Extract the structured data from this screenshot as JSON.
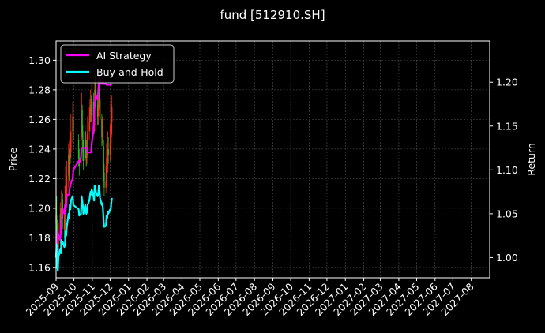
{
  "chart_data": {
    "type": "line",
    "title": "fund [512910.SH]",
    "ylabel": "Price",
    "y2label": "Return",
    "ylim": [
      1.153,
      1.313
    ],
    "y2lim": [
      0.977,
      1.247
    ],
    "yticks": [
      "1.16",
      "1.18",
      "1.20",
      "1.22",
      "1.24",
      "1.26",
      "1.28",
      "1.30"
    ],
    "y2ticks": [
      "1.00",
      "1.05",
      "1.10",
      "1.15",
      "1.20"
    ],
    "xticks": [
      "2025-09",
      "2025-10",
      "2025-11",
      "2025-12",
      "2026-01",
      "2026-02",
      "2026-03",
      "2026-04",
      "2026-05",
      "2026-06",
      "2026-07",
      "2026-08",
      "2026-09",
      "2026-10",
      "2026-11",
      "2026-12",
      "2027-01",
      "2027-02",
      "2027-03",
      "2027-04",
      "2027-05",
      "2027-06",
      "2027-07",
      "2027-08"
    ],
    "xlim": [
      "2025-09-01",
      "2027-09-01"
    ],
    "grid": true,
    "legend": {
      "placement": "top-left",
      "entries": [
        "AI Strategy",
        "Buy-and-Hold"
      ]
    },
    "series": [
      {
        "name": "AI Strategy",
        "axis": "right",
        "color": "#ff00ff",
        "points": [
          [
            "2025-09-01",
            1.0
          ],
          [
            "2025-09-02",
            1.01
          ],
          [
            "2025-09-03",
            1.005
          ],
          [
            "2025-09-04",
            1.03
          ],
          [
            "2025-09-05",
            1.025
          ],
          [
            "2025-09-08",
            1.02
          ],
          [
            "2025-09-09",
            1.03
          ],
          [
            "2025-09-10",
            1.04
          ],
          [
            "2025-09-11",
            1.045
          ],
          [
            "2025-09-12",
            1.055
          ],
          [
            "2025-09-15",
            1.05
          ],
          [
            "2025-09-16",
            1.06
          ],
          [
            "2025-09-17",
            1.06
          ],
          [
            "2025-09-18",
            1.058
          ],
          [
            "2025-09-19",
            1.07
          ],
          [
            "2025-09-22",
            1.072
          ],
          [
            "2025-09-23",
            1.072
          ],
          [
            "2025-09-24",
            1.08
          ],
          [
            "2025-09-25",
            1.082
          ],
          [
            "2025-09-26",
            1.085
          ],
          [
            "2025-09-29",
            1.09
          ],
          [
            "2025-09-30",
            1.1
          ],
          [
            "2025-10-09",
            1.11
          ],
          [
            "2025-10-10",
            1.108
          ],
          [
            "2025-10-13",
            1.115
          ],
          [
            "2025-10-14",
            1.125
          ],
          [
            "2025-10-15",
            1.125
          ],
          [
            "2025-10-16",
            1.125
          ],
          [
            "2025-10-17",
            1.125
          ],
          [
            "2025-10-20",
            1.125
          ],
          [
            "2025-10-21",
            1.125
          ],
          [
            "2025-10-22",
            1.125
          ],
          [
            "2025-10-23",
            1.125
          ],
          [
            "2025-10-24",
            1.12
          ],
          [
            "2025-10-27",
            1.12
          ],
          [
            "2025-10-28",
            1.12
          ],
          [
            "2025-10-29",
            1.12
          ],
          [
            "2025-10-30",
            1.12
          ],
          [
            "2025-10-31",
            1.13
          ],
          [
            "2025-11-03",
            1.145
          ],
          [
            "2025-11-04",
            1.16
          ],
          [
            "2025-11-05",
            1.175
          ],
          [
            "2025-11-06",
            1.18
          ],
          [
            "2025-11-07",
            1.185
          ],
          [
            "2025-11-10",
            1.18
          ],
          [
            "2025-11-11",
            1.19
          ],
          [
            "2025-11-12",
            1.2
          ],
          [
            "2025-11-13",
            1.21
          ],
          [
            "2025-11-14",
            1.2
          ],
          [
            "2025-11-17",
            1.198
          ],
          [
            "2025-11-18",
            1.2
          ],
          [
            "2025-11-19",
            1.198
          ],
          [
            "2025-11-20",
            1.2
          ],
          [
            "2025-11-21",
            1.198
          ],
          [
            "2025-11-24",
            1.198
          ],
          [
            "2025-11-25",
            1.197
          ],
          [
            "2025-11-26",
            1.197
          ],
          [
            "2025-11-27",
            1.197
          ],
          [
            "2025-11-28",
            1.197
          ],
          [
            "2025-12-01",
            1.197
          ],
          [
            "2025-12-02",
            1.197
          ],
          [
            "2025-12-03",
            1.197
          ],
          [
            "2025-12-04",
            1.197
          ]
        ]
      },
      {
        "name": "Buy-and-Hold",
        "axis": "right",
        "color": "#00ffff",
        "points": [
          [
            "2025-09-01",
            1.0
          ],
          [
            "2025-09-02",
            1.015
          ],
          [
            "2025-09-03",
            0.99
          ],
          [
            "2025-09-04",
            0.985
          ],
          [
            "2025-09-05",
            1.0
          ],
          [
            "2025-09-08",
            1.01
          ],
          [
            "2025-09-09",
            1.005
          ],
          [
            "2025-09-10",
            1.02
          ],
          [
            "2025-09-11",
            1.015
          ],
          [
            "2025-09-12",
            1.018
          ],
          [
            "2025-09-15",
            1.012
          ],
          [
            "2025-09-16",
            1.015
          ],
          [
            "2025-09-17",
            1.03
          ],
          [
            "2025-09-18",
            1.025
          ],
          [
            "2025-09-19",
            1.035
          ],
          [
            "2025-09-22",
            1.05
          ],
          [
            "2025-09-23",
            1.045
          ],
          [
            "2025-09-24",
            1.06
          ],
          [
            "2025-09-25",
            1.055
          ],
          [
            "2025-09-26",
            1.065
          ],
          [
            "2025-09-29",
            1.07
          ],
          [
            "2025-09-30",
            1.06
          ],
          [
            "2025-10-09",
            1.055
          ],
          [
            "2025-10-10",
            1.048
          ],
          [
            "2025-10-13",
            1.05
          ],
          [
            "2025-10-14",
            1.07
          ],
          [
            "2025-10-15",
            1.065
          ],
          [
            "2025-10-16",
            1.06
          ],
          [
            "2025-10-17",
            1.05
          ],
          [
            "2025-10-20",
            1.06
          ],
          [
            "2025-10-21",
            1.055
          ],
          [
            "2025-10-22",
            1.05
          ],
          [
            "2025-10-23",
            1.052
          ],
          [
            "2025-10-24",
            1.06
          ],
          [
            "2025-10-27",
            1.065
          ],
          [
            "2025-10-28",
            1.07
          ],
          [
            "2025-10-29",
            1.075
          ],
          [
            "2025-10-30",
            1.072
          ],
          [
            "2025-10-31",
            1.078
          ],
          [
            "2025-11-03",
            1.07
          ],
          [
            "2025-11-04",
            1.065
          ],
          [
            "2025-11-05",
            1.082
          ],
          [
            "2025-11-06",
            1.08
          ],
          [
            "2025-11-07",
            1.075
          ],
          [
            "2025-11-10",
            1.07
          ],
          [
            "2025-11-11",
            1.072
          ],
          [
            "2025-11-12",
            1.082
          ],
          [
            "2025-11-13",
            1.078
          ],
          [
            "2025-11-14",
            1.068
          ],
          [
            "2025-11-17",
            1.06
          ],
          [
            "2025-11-18",
            1.062
          ],
          [
            "2025-11-19",
            1.055
          ],
          [
            "2025-11-20",
            1.042
          ],
          [
            "2025-11-21",
            1.035
          ],
          [
            "2025-11-24",
            1.036
          ],
          [
            "2025-11-25",
            1.048
          ],
          [
            "2025-11-26",
            1.045
          ],
          [
            "2025-11-27",
            1.052
          ],
          [
            "2025-11-28",
            1.05
          ],
          [
            "2025-12-01",
            1.055
          ],
          [
            "2025-12-02",
            1.055
          ],
          [
            "2025-12-03",
            1.062
          ],
          [
            "2025-12-04",
            1.068
          ]
        ]
      },
      {
        "name": "",
        "type": "candlestick",
        "axis": "left",
        "up_color": "#ff2a1a",
        "down_color": "#1fc01f",
        "candles": [
          [
            "2025-09-01",
            1.19,
            1.195,
            1.205,
            1.18
          ],
          [
            "2025-09-02",
            1.195,
            1.188,
            1.208,
            1.175
          ],
          [
            "2025-09-03",
            1.188,
            1.175,
            1.192,
            1.165
          ],
          [
            "2025-09-04",
            1.175,
            1.17,
            1.185,
            1.16
          ],
          [
            "2025-09-05",
            1.17,
            1.18,
            1.19,
            1.165
          ],
          [
            "2025-09-08",
            1.18,
            1.196,
            1.204,
            1.176
          ],
          [
            "2025-09-09",
            1.196,
            1.185,
            1.2,
            1.18
          ],
          [
            "2025-09-10",
            1.185,
            1.2,
            1.212,
            1.182
          ],
          [
            "2025-09-11",
            1.2,
            1.206,
            1.216,
            1.19
          ],
          [
            "2025-09-12",
            1.206,
            1.193,
            1.21,
            1.186
          ],
          [
            "2025-09-15",
            1.193,
            1.185,
            1.2,
            1.18
          ],
          [
            "2025-09-16",
            1.185,
            1.2,
            1.215,
            1.182
          ],
          [
            "2025-09-17",
            1.2,
            1.215,
            1.228,
            1.196
          ],
          [
            "2025-09-18",
            1.215,
            1.205,
            1.22,
            1.198
          ],
          [
            "2025-09-19",
            1.205,
            1.222,
            1.232,
            1.202
          ],
          [
            "2025-09-22",
            1.222,
            1.236,
            1.244,
            1.214
          ],
          [
            "2025-09-23",
            1.236,
            1.224,
            1.24,
            1.218
          ],
          [
            "2025-09-24",
            1.224,
            1.246,
            1.256,
            1.22
          ],
          [
            "2025-09-25",
            1.246,
            1.238,
            1.25,
            1.23
          ],
          [
            "2025-09-26",
            1.238,
            1.252,
            1.264,
            1.234
          ],
          [
            "2025-09-29",
            1.252,
            1.262,
            1.272,
            1.244
          ],
          [
            "2025-09-30",
            1.262,
            1.246,
            1.266,
            1.24
          ],
          [
            "2025-10-09",
            1.246,
            1.234,
            1.25,
            1.228
          ],
          [
            "2025-10-10",
            1.234,
            1.228,
            1.24,
            1.222
          ],
          [
            "2025-10-13",
            1.228,
            1.25,
            1.262,
            1.224
          ],
          [
            "2025-10-14",
            1.25,
            1.266,
            1.278,
            1.246
          ],
          [
            "2025-10-15",
            1.266,
            1.252,
            1.27,
            1.248
          ],
          [
            "2025-10-16",
            1.252,
            1.24,
            1.256,
            1.232
          ],
          [
            "2025-10-17",
            1.24,
            1.232,
            1.246,
            1.226
          ],
          [
            "2025-10-20",
            1.232,
            1.246,
            1.256,
            1.228
          ],
          [
            "2025-10-21",
            1.246,
            1.24,
            1.252,
            1.234
          ],
          [
            "2025-10-22",
            1.24,
            1.234,
            1.246,
            1.228
          ],
          [
            "2025-10-23",
            1.234,
            1.24,
            1.25,
            1.23
          ],
          [
            "2025-10-24",
            1.24,
            1.252,
            1.262,
            1.236
          ],
          [
            "2025-10-27",
            1.252,
            1.258,
            1.268,
            1.246
          ],
          [
            "2025-10-28",
            1.258,
            1.264,
            1.274,
            1.252
          ],
          [
            "2025-10-29",
            1.264,
            1.27,
            1.28,
            1.258
          ],
          [
            "2025-10-30",
            1.27,
            1.264,
            1.276,
            1.258
          ],
          [
            "2025-10-31",
            1.264,
            1.272,
            1.284,
            1.26
          ],
          [
            "2025-11-03",
            1.272,
            1.262,
            1.278,
            1.256
          ],
          [
            "2025-11-04",
            1.262,
            1.256,
            1.268,
            1.25
          ],
          [
            "2025-11-05",
            1.256,
            1.28,
            1.29,
            1.252
          ],
          [
            "2025-11-06",
            1.28,
            1.276,
            1.29,
            1.268
          ],
          [
            "2025-11-07",
            1.276,
            1.27,
            1.282,
            1.264
          ],
          [
            "2025-11-10",
            1.27,
            1.262,
            1.276,
            1.256
          ],
          [
            "2025-11-11",
            1.262,
            1.266,
            1.276,
            1.256
          ],
          [
            "2025-11-12",
            1.266,
            1.28,
            1.29,
            1.262
          ],
          [
            "2025-11-13",
            1.28,
            1.274,
            1.286,
            1.268
          ],
          [
            "2025-11-14",
            1.274,
            1.26,
            1.278,
            1.254
          ],
          [
            "2025-11-17",
            1.26,
            1.248,
            1.264,
            1.242
          ],
          [
            "2025-11-18",
            1.248,
            1.252,
            1.262,
            1.244
          ],
          [
            "2025-11-19",
            1.252,
            1.242,
            1.256,
            1.236
          ],
          [
            "2025-11-20",
            1.242,
            1.224,
            1.246,
            1.218
          ],
          [
            "2025-11-21",
            1.224,
            1.214,
            1.23,
            1.208
          ],
          [
            "2025-11-24",
            1.214,
            1.218,
            1.228,
            1.21
          ],
          [
            "2025-11-25",
            1.218,
            1.234,
            1.244,
            1.214
          ],
          [
            "2025-11-26",
            1.234,
            1.228,
            1.24,
            1.222
          ],
          [
            "2025-11-27",
            1.228,
            1.24,
            1.252,
            1.224
          ],
          [
            "2025-11-28",
            1.24,
            1.236,
            1.248,
            1.23
          ],
          [
            "2025-12-01",
            1.236,
            1.244,
            1.256,
            1.232
          ],
          [
            "2025-12-02",
            1.244,
            1.248,
            1.258,
            1.24
          ],
          [
            "2025-12-03",
            1.248,
            1.258,
            1.27,
            1.244
          ],
          [
            "2025-12-04",
            1.258,
            1.268,
            1.276,
            1.25
          ]
        ]
      }
    ]
  }
}
